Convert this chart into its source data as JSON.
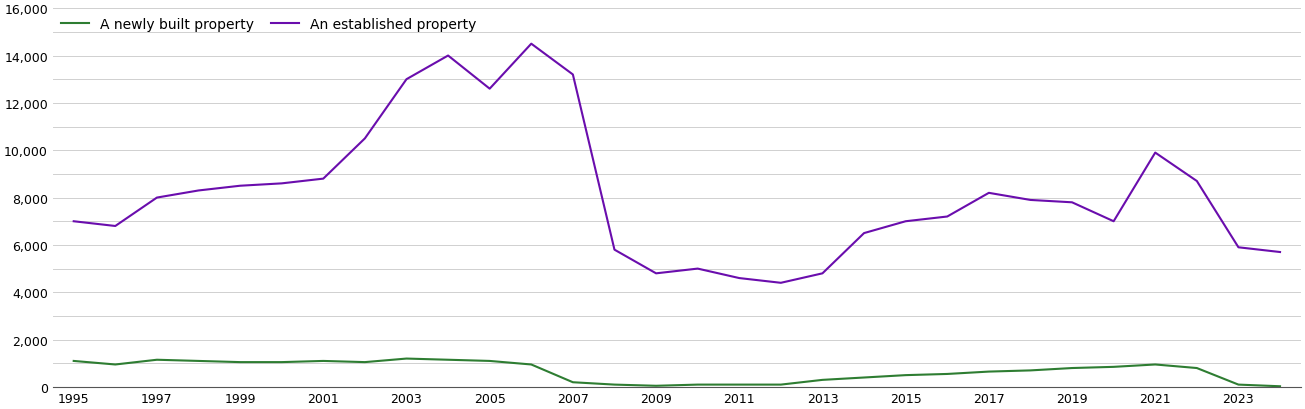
{
  "years": [
    1995,
    1996,
    1997,
    1998,
    1999,
    2000,
    2001,
    2002,
    2003,
    2004,
    2005,
    2006,
    2007,
    2008,
    2009,
    2010,
    2011,
    2012,
    2013,
    2014,
    2015,
    2016,
    2017,
    2018,
    2019,
    2020,
    2021,
    2022,
    2023,
    2024
  ],
  "newly_built": [
    1100,
    950,
    1150,
    1100,
    1050,
    1050,
    1100,
    1050,
    1200,
    1150,
    1100,
    950,
    200,
    100,
    50,
    100,
    100,
    100,
    300,
    400,
    500,
    550,
    650,
    700,
    800,
    850,
    950,
    800,
    100,
    30
  ],
  "established": [
    7000,
    6800,
    8000,
    8300,
    8500,
    8600,
    8800,
    10500,
    13000,
    14000,
    12600,
    14500,
    13200,
    5800,
    4800,
    5000,
    4600,
    4400,
    4800,
    6500,
    7000,
    7200,
    8200,
    7900,
    7800,
    7000,
    9900,
    8700,
    5900,
    5700
  ],
  "newly_built_color": "#2e7d32",
  "established_color": "#6a0dad",
  "newly_built_label": "A newly built property",
  "established_label": "An established property",
  "ylim": [
    0,
    16000
  ],
  "ytick_labels": [
    0,
    2000,
    4000,
    6000,
    8000,
    10000,
    12000,
    14000,
    16000
  ],
  "ytick_minor": [
    1000,
    3000,
    5000,
    7000,
    9000,
    11000,
    13000,
    15000
  ],
  "background_color": "#ffffff",
  "grid_color": "#d0d0d0",
  "line_width": 1.5,
  "legend_fontsize": 10,
  "tick_fontsize": 9,
  "xtick_labels": [
    1995,
    1997,
    1999,
    2001,
    2003,
    2005,
    2007,
    2009,
    2011,
    2013,
    2015,
    2017,
    2019,
    2021,
    2023
  ]
}
